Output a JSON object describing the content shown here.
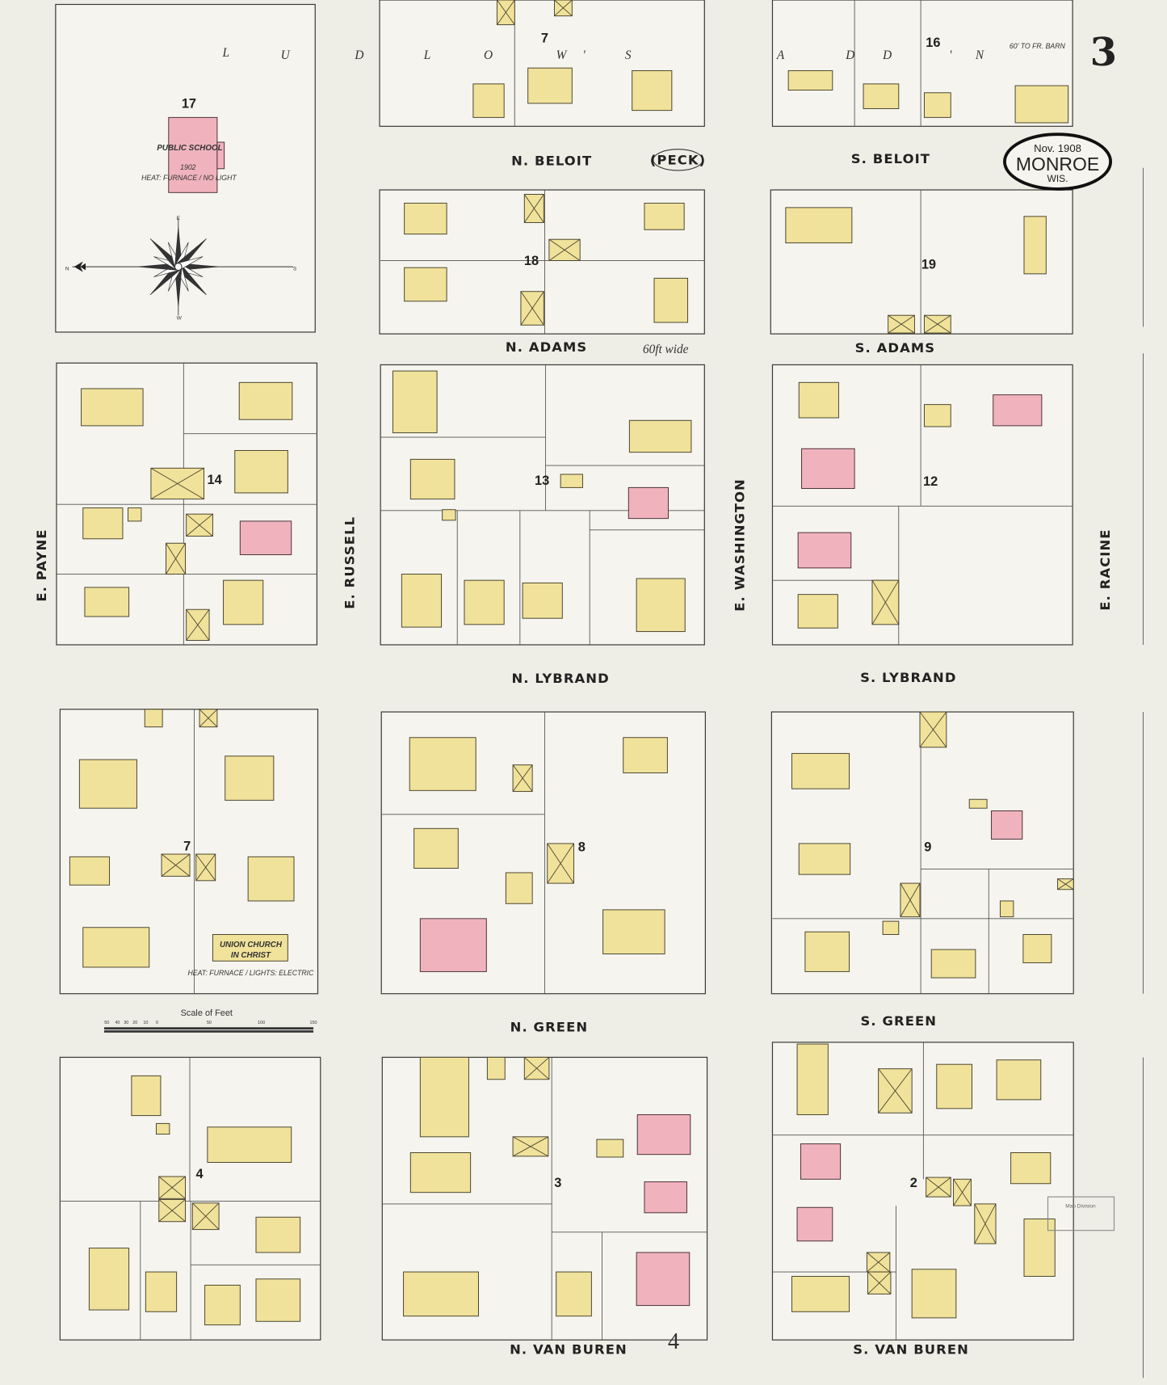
{
  "sheet": {
    "number": "3",
    "date": "Nov. 1908",
    "city": "MONROE",
    "state": "WIS."
  },
  "colors": {
    "paper": "#efeee6",
    "frame_dwelling": "#f0e29a",
    "brick": "#f0b3bd"
  },
  "streets": {
    "n_beloit": "N. BELOIT",
    "peck": "(PECK)",
    "s_beloit": "S. BELOIT",
    "n_adams": "N. ADAMS",
    "n_adams_note": "60ft wide",
    "s_adams": "S. ADAMS",
    "n_lybrand": "N. LYBRAND",
    "s_lybrand": "S. LYBRAND",
    "n_green": "N. GREEN",
    "s_green": "S. GREEN",
    "n_van_buren": "N. VAN BUREN",
    "s_van_buren": "S. VAN BUREN",
    "e_payne": "E. PAYNE",
    "e_russell": "E. RUSSELL",
    "e_washington": "E. WASHINGTON",
    "e_racine": "E. RACINE"
  },
  "blocks": [
    "17",
    "7",
    "16",
    "18",
    "19",
    "14",
    "13",
    "12",
    "7",
    "8",
    "9",
    "4",
    "3",
    "2"
  ],
  "adjoining_sheet": "4",
  "addition_letters": [
    "L",
    "U",
    "D",
    "L",
    "O",
    "W",
    "'",
    "S",
    "A",
    "D",
    "D",
    "'",
    "N"
  ],
  "buildings": {
    "public_school": "PUBLIC SCHOOL",
    "public_school_year": "1902",
    "public_school_note": "HEAT: FURNACE / NO LIGHT",
    "union_church": "UNION CHURCH",
    "union_church_2": "IN CHRIST",
    "union_church_note": "HEAT: FURNACE / LIGHTS: ELECTRIC",
    "to_fr_barn": "60' TO FR. BARN"
  },
  "scale": {
    "title": "Scale of Feet",
    "ticks": [
      "50",
      "40",
      "30",
      "20",
      "10",
      "0",
      "50",
      "100",
      "150"
    ]
  },
  "stamp": "Map Division",
  "compass": {
    "n": "N",
    "s": "S",
    "e": "E",
    "w": "W"
  }
}
